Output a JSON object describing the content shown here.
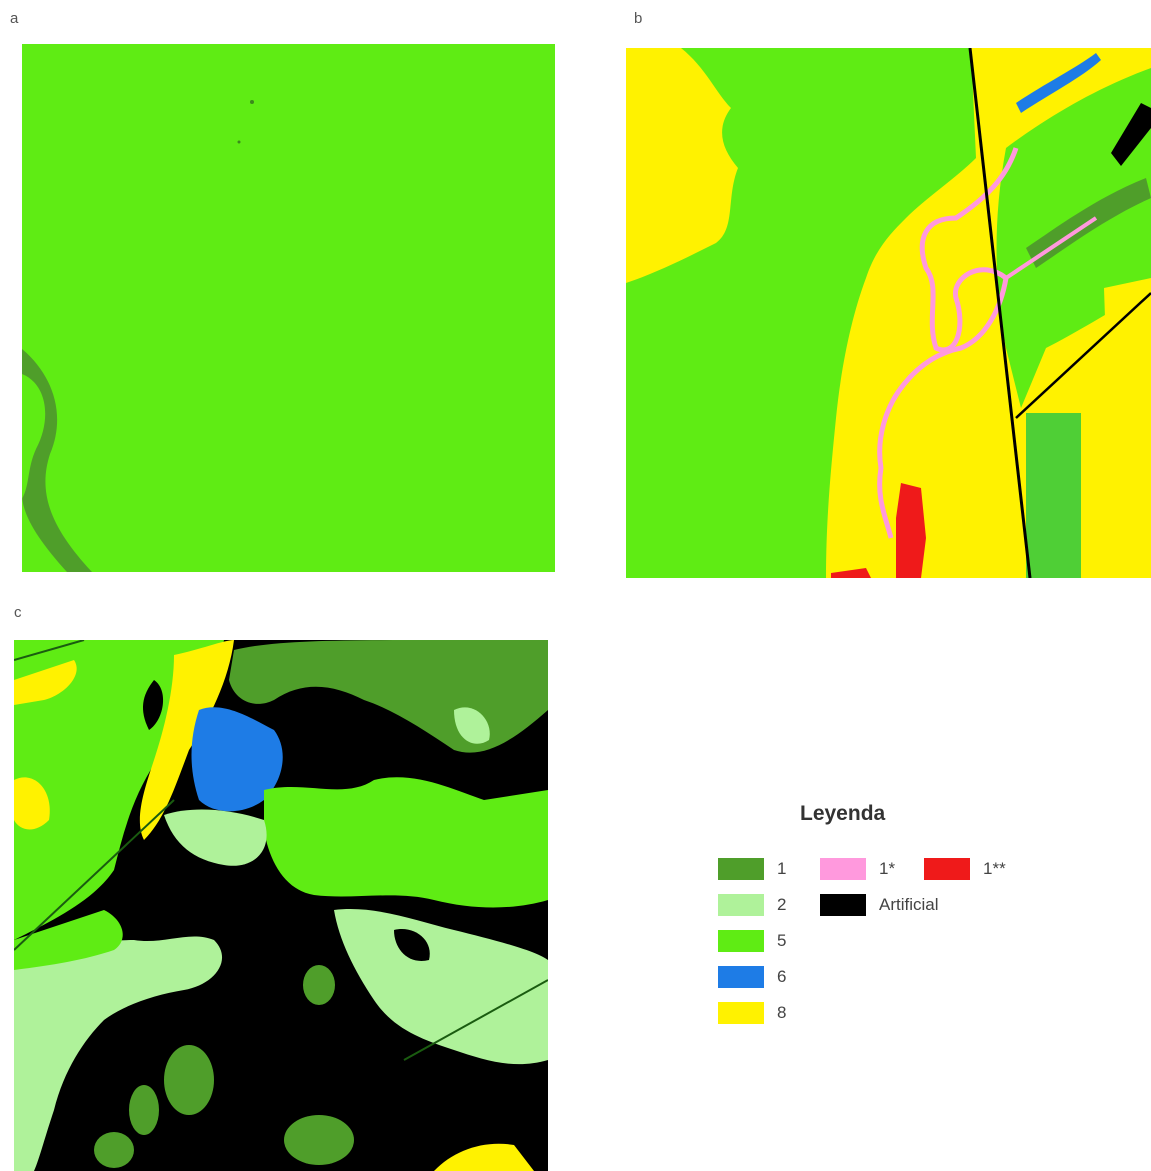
{
  "panels": [
    {
      "label": "a"
    },
    {
      "label": "b"
    },
    {
      "label": "c"
    }
  ],
  "legend": {
    "title": "Leyenda",
    "items": [
      {
        "label": "1",
        "color": "#4f9e2a"
      },
      {
        "label": "2",
        "color": "#aff29a"
      },
      {
        "label": "5",
        "color": "#5fec14"
      },
      {
        "label": "6",
        "color": "#1e7ce6"
      },
      {
        "label": "8",
        "color": "#fff200"
      },
      {
        "label": "1*",
        "color": "#ff99dd"
      },
      {
        "label": "1**",
        "color": "#ef1a1a"
      },
      {
        "label": "Artificial",
        "color": "#000000"
      }
    ]
  }
}
